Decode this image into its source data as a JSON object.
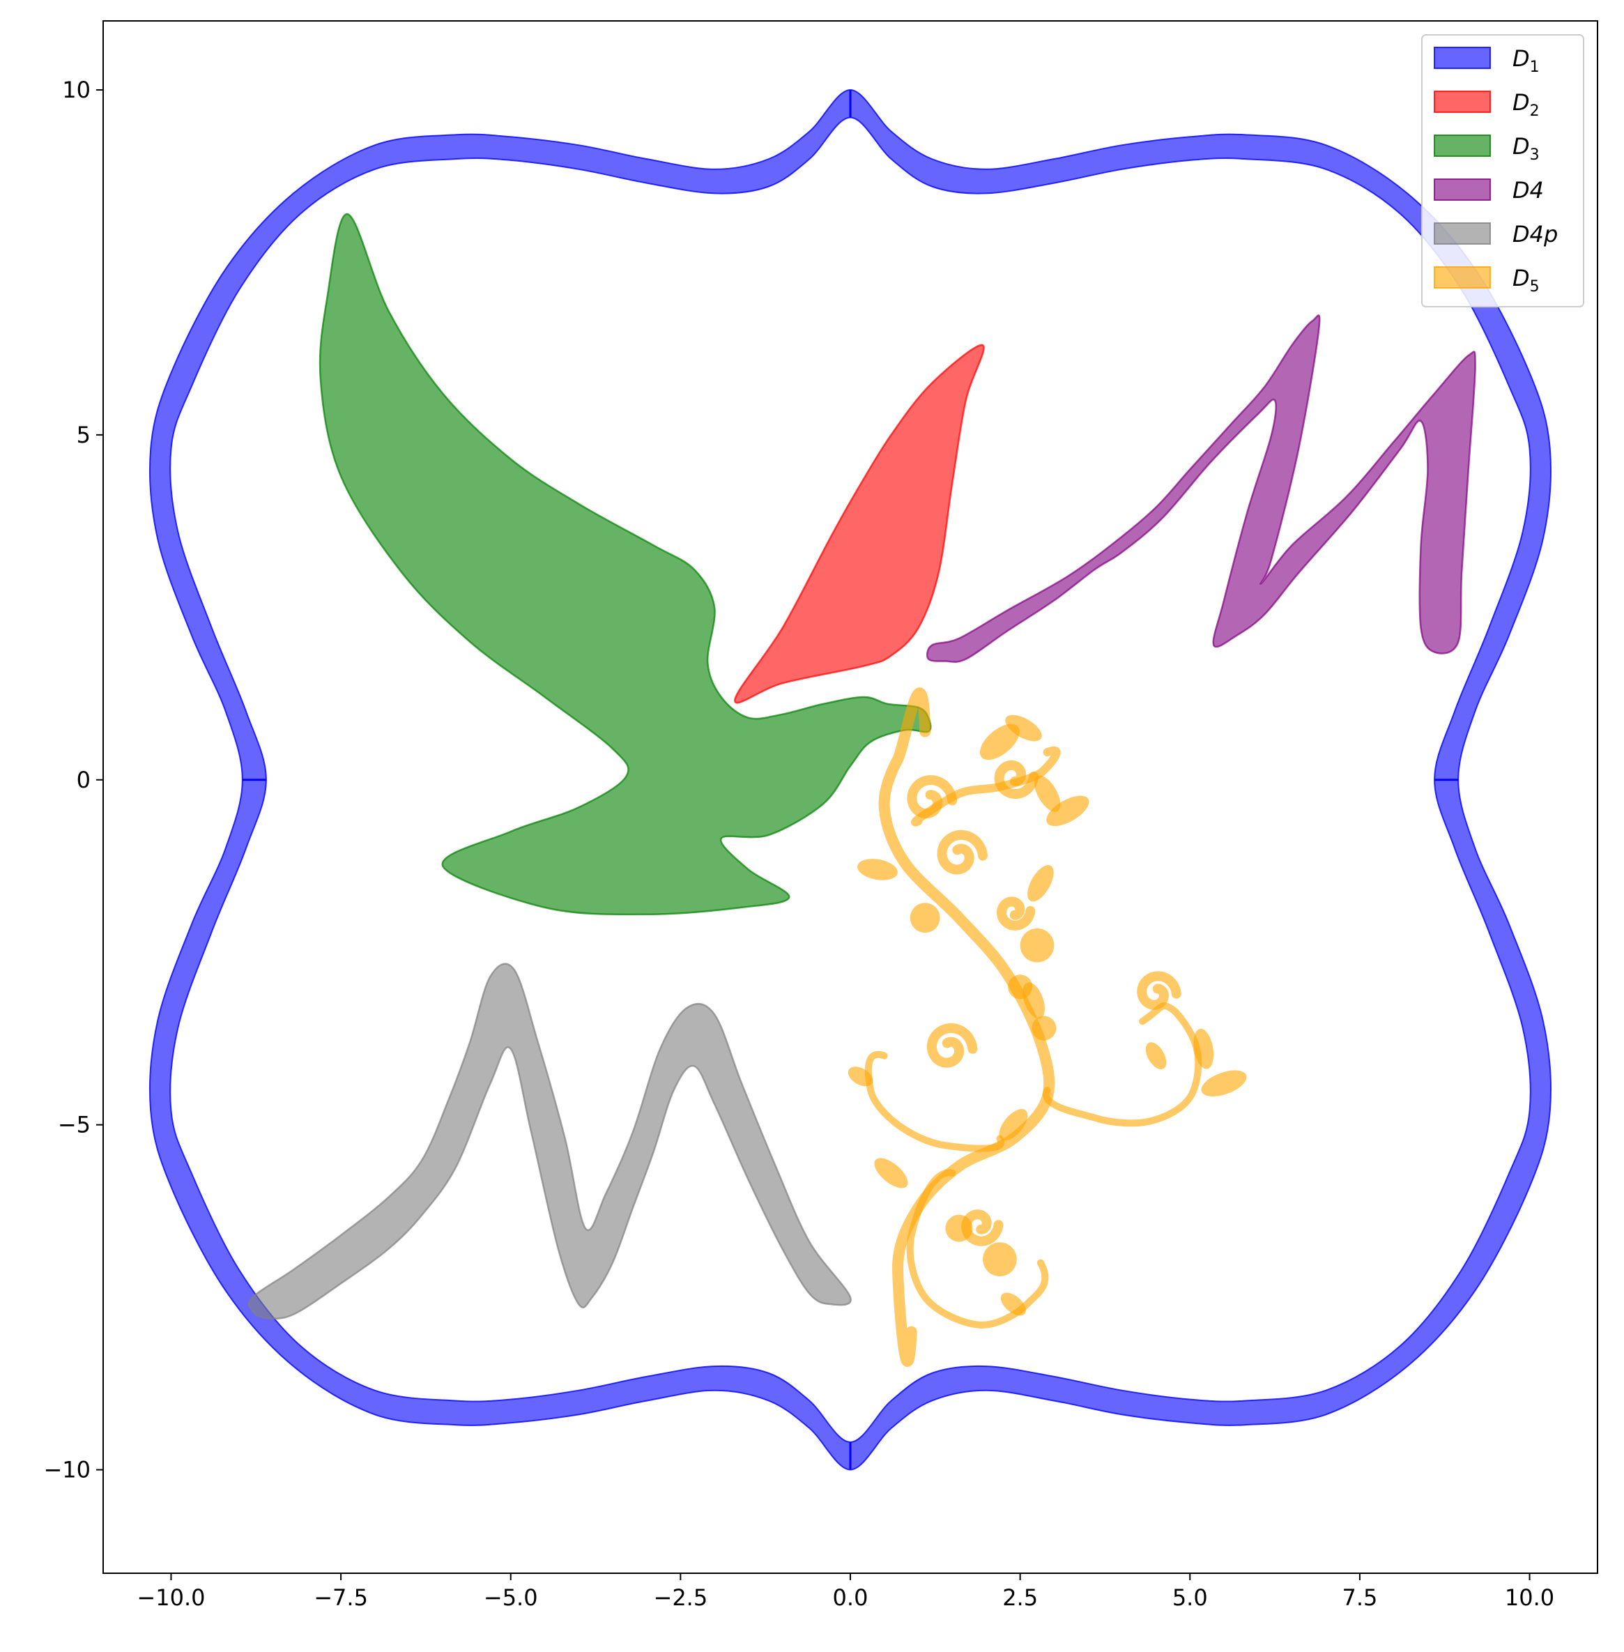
{
  "chart_data": {
    "type": "area",
    "title": "",
    "xlabel": "",
    "ylabel": "",
    "xlim": [
      -11.0,
      11.0
    ],
    "ylim": [
      -11.5,
      11.0
    ],
    "x_ticks": [
      -10.0,
      -7.5,
      -5.0,
      -2.5,
      0.0,
      2.5,
      5.0,
      7.5,
      10.0
    ],
    "x_tick_labels": [
      "−10.0",
      "−7.5",
      "−5.0",
      "−2.5",
      "0.0",
      "2.5",
      "5.0",
      "7.5",
      "10.0"
    ],
    "y_ticks": [
      10,
      5,
      0,
      -5,
      -10
    ],
    "y_tick_labels": [
      "10",
      "5",
      "0",
      "−5",
      "−10"
    ],
    "grid": false,
    "legend_position": "top-right",
    "series": [
      {
        "name": "D1",
        "label_main": "D",
        "label_sub": "1",
        "color": "#0000ff",
        "alpha": 0.6,
        "outer": [
          [
            0,
            10
          ],
          [
            0.6,
            9.4
          ],
          [
            1.2,
            9.0
          ],
          [
            2.0,
            8.85
          ],
          [
            3.0,
            9.0
          ],
          [
            4.0,
            9.2
          ],
          [
            5.0,
            9.32
          ],
          [
            5.8,
            9.35
          ],
          [
            7.0,
            9.2
          ],
          [
            8.2,
            8.5
          ],
          [
            9.2,
            7.4
          ],
          [
            10.0,
            5.9
          ],
          [
            10.3,
            4.8
          ],
          [
            10.2,
            3.5
          ],
          [
            9.7,
            2.1
          ],
          [
            9.2,
            1.0
          ],
          [
            8.95,
            0
          ],
          [
            9.2,
            -1.0
          ],
          [
            9.7,
            -2.1
          ],
          [
            10.2,
            -3.5
          ],
          [
            10.3,
            -4.8
          ],
          [
            10.0,
            -5.9
          ],
          [
            9.2,
            -7.4
          ],
          [
            8.2,
            -8.5
          ],
          [
            7.0,
            -9.2
          ],
          [
            5.8,
            -9.35
          ],
          [
            5.0,
            -9.32
          ],
          [
            4.0,
            -9.2
          ],
          [
            3.0,
            -9.0
          ],
          [
            2.0,
            -8.85
          ],
          [
            1.2,
            -9.0
          ],
          [
            0.6,
            -9.4
          ],
          [
            0,
            -10
          ],
          [
            -0.6,
            -9.4
          ],
          [
            -1.2,
            -9.0
          ],
          [
            -2.0,
            -8.85
          ],
          [
            -3.0,
            -9.0
          ],
          [
            -4.0,
            -9.2
          ],
          [
            -5.0,
            -9.32
          ],
          [
            -5.8,
            -9.35
          ],
          [
            -7.0,
            -9.2
          ],
          [
            -8.2,
            -8.5
          ],
          [
            -9.2,
            -7.4
          ],
          [
            -10.0,
            -5.9
          ],
          [
            -10.3,
            -4.8
          ],
          [
            -10.2,
            -3.5
          ],
          [
            -9.7,
            -2.1
          ],
          [
            -9.2,
            -1.0
          ],
          [
            -8.95,
            0
          ],
          [
            -9.2,
            1.0
          ],
          [
            -9.7,
            2.1
          ],
          [
            -10.2,
            3.5
          ],
          [
            -10.3,
            4.8
          ],
          [
            -10.0,
            5.9
          ],
          [
            -9.2,
            7.4
          ],
          [
            -8.2,
            8.5
          ],
          [
            -7.0,
            9.2
          ],
          [
            -5.8,
            9.35
          ],
          [
            -5.0,
            9.32
          ],
          [
            -4.0,
            9.2
          ],
          [
            -3.0,
            9.0
          ],
          [
            -2.0,
            8.85
          ],
          [
            -1.2,
            9.0
          ],
          [
            -0.6,
            9.4
          ]
        ],
        "inner": [
          [
            0,
            9.6
          ],
          [
            0.6,
            9.0
          ],
          [
            1.2,
            8.6
          ],
          [
            2.0,
            8.5
          ],
          [
            3.0,
            8.65
          ],
          [
            4.0,
            8.85
          ],
          [
            5.0,
            8.98
          ],
          [
            5.8,
            9.0
          ],
          [
            7.0,
            8.85
          ],
          [
            8.1,
            8.2
          ],
          [
            9.0,
            7.1
          ],
          [
            9.7,
            5.7
          ],
          [
            10.0,
            4.8
          ],
          [
            9.9,
            3.6
          ],
          [
            9.4,
            2.2
          ],
          [
            8.9,
            1.0
          ],
          [
            8.6,
            0
          ],
          [
            8.9,
            -1.0
          ],
          [
            9.4,
            -2.2
          ],
          [
            9.9,
            -3.6
          ],
          [
            10.0,
            -4.8
          ],
          [
            9.7,
            -5.7
          ],
          [
            9.0,
            -7.1
          ],
          [
            8.1,
            -8.2
          ],
          [
            7.0,
            -8.85
          ],
          [
            5.8,
            -9.0
          ],
          [
            5.0,
            -8.98
          ],
          [
            4.0,
            -8.85
          ],
          [
            3.0,
            -8.65
          ],
          [
            2.0,
            -8.5
          ],
          [
            1.2,
            -8.6
          ],
          [
            0.6,
            -9.0
          ],
          [
            0,
            -9.6
          ],
          [
            -0.6,
            -9.0
          ],
          [
            -1.2,
            -8.6
          ],
          [
            -2.0,
            -8.5
          ],
          [
            -3.0,
            -8.65
          ],
          [
            -4.0,
            -8.85
          ],
          [
            -5.0,
            -8.98
          ],
          [
            -5.8,
            -9.0
          ],
          [
            -7.0,
            -8.85
          ],
          [
            -8.1,
            -8.2
          ],
          [
            -9.0,
            -7.1
          ],
          [
            -9.7,
            -5.7
          ],
          [
            -10.0,
            -4.8
          ],
          [
            -9.9,
            -3.6
          ],
          [
            -9.4,
            -2.2
          ],
          [
            -8.9,
            -1.0
          ],
          [
            -8.6,
            0
          ],
          [
            -8.9,
            1.0
          ],
          [
            -9.4,
            2.2
          ],
          [
            -9.9,
            3.6
          ],
          [
            -10.0,
            4.8
          ],
          [
            -9.7,
            5.7
          ],
          [
            -9.0,
            7.1
          ],
          [
            -8.1,
            8.2
          ],
          [
            -7.0,
            8.85
          ],
          [
            -5.8,
            9.0
          ],
          [
            -5.0,
            8.98
          ],
          [
            -4.0,
            8.85
          ],
          [
            -3.0,
            8.65
          ],
          [
            -2.0,
            8.5
          ],
          [
            -1.2,
            8.6
          ],
          [
            -0.6,
            9.0
          ]
        ]
      },
      {
        "name": "D2",
        "label_main": "D",
        "label_sub": "2",
        "color": "#ff0000",
        "alpha": 0.6,
        "outline": [
          [
            -1.7,
            1.15
          ],
          [
            -1.0,
            2.2
          ],
          [
            -0.3,
            3.5
          ],
          [
            0.1,
            4.2
          ],
          [
            0.6,
            5.0
          ],
          [
            1.2,
            5.75
          ],
          [
            1.95,
            6.3
          ],
          [
            1.7,
            5.5
          ],
          [
            1.5,
            4.3
          ],
          [
            1.3,
            3.0
          ],
          [
            1.0,
            2.2
          ],
          [
            0.6,
            1.8
          ],
          [
            0.2,
            1.65
          ],
          [
            -1.0,
            1.4
          ]
        ]
      },
      {
        "name": "D3",
        "label_main": "D",
        "label_sub": "3",
        "color": "#008000",
        "alpha": 0.6,
        "outline": [
          [
            -7.4,
            8.2
          ],
          [
            -6.8,
            6.8
          ],
          [
            -6.0,
            5.6
          ],
          [
            -5.0,
            4.65
          ],
          [
            -4.0,
            4.0
          ],
          [
            -2.9,
            3.4
          ],
          [
            -2.3,
            3.05
          ],
          [
            -2.0,
            2.5
          ],
          [
            -2.1,
            1.7
          ],
          [
            -1.9,
            1.2
          ],
          [
            -1.5,
            0.9
          ],
          [
            -1.0,
            0.95
          ],
          [
            -0.4,
            1.1
          ],
          [
            0.2,
            1.2
          ],
          [
            0.55,
            1.1
          ],
          [
            1.0,
            1.05
          ],
          [
            1.15,
            0.9
          ],
          [
            1.15,
            0.7
          ],
          [
            0.8,
            0.72
          ],
          [
            0.3,
            0.55
          ],
          [
            0.0,
            0.2
          ],
          [
            -0.4,
            -0.35
          ],
          [
            -1.2,
            -0.8
          ],
          [
            -1.9,
            -0.85
          ],
          [
            -1.5,
            -1.3
          ],
          [
            -0.9,
            -1.7
          ],
          [
            -1.6,
            -1.85
          ],
          [
            -3.0,
            -1.95
          ],
          [
            -4.5,
            -1.85
          ],
          [
            -6.0,
            -1.25
          ],
          [
            -5.0,
            -0.75
          ],
          [
            -4.0,
            -0.4
          ],
          [
            -3.3,
            0.05
          ],
          [
            -3.5,
            0.45
          ],
          [
            -4.5,
            1.2
          ],
          [
            -5.6,
            2.0
          ],
          [
            -6.6,
            3.0
          ],
          [
            -7.5,
            4.4
          ],
          [
            -7.8,
            5.8
          ],
          [
            -7.7,
            7.0
          ]
        ]
      },
      {
        "name": "D4",
        "label_main": "D4",
        "label_sub": "",
        "color": "#800080",
        "alpha": 0.6,
        "outline": [
          [
            1.2,
            1.95
          ],
          [
            1.6,
            2.05
          ],
          [
            2.3,
            2.45
          ],
          [
            3.2,
            2.95
          ],
          [
            3.9,
            3.45
          ],
          [
            4.5,
            3.95
          ],
          [
            5.0,
            4.5
          ],
          [
            5.6,
            5.15
          ],
          [
            6.1,
            5.7
          ],
          [
            6.5,
            6.3
          ],
          [
            6.8,
            6.65
          ],
          [
            6.9,
            6.55
          ],
          [
            6.6,
            4.8
          ],
          [
            6.2,
            3.2
          ],
          [
            6.05,
            2.85
          ],
          [
            6.5,
            3.4
          ],
          [
            7.3,
            4.1
          ],
          [
            8.0,
            4.9
          ],
          [
            8.6,
            5.6
          ],
          [
            9.1,
            6.15
          ],
          [
            9.2,
            6.0
          ],
          [
            9.1,
            4.5
          ],
          [
            9.0,
            3.0
          ],
          [
            8.95,
            2.0
          ],
          [
            8.6,
            1.85
          ],
          [
            8.4,
            2.2
          ],
          [
            8.4,
            3.4
          ],
          [
            8.5,
            4.5
          ],
          [
            8.4,
            5.2
          ],
          [
            8.1,
            4.8
          ],
          [
            7.4,
            3.9
          ],
          [
            6.6,
            3.0
          ],
          [
            6.1,
            2.4
          ],
          [
            5.7,
            2.1
          ],
          [
            5.35,
            1.95
          ],
          [
            5.5,
            2.6
          ],
          [
            5.85,
            3.9
          ],
          [
            6.2,
            5.0
          ],
          [
            6.25,
            5.5
          ],
          [
            6.0,
            5.3
          ],
          [
            5.3,
            4.6
          ],
          [
            4.6,
            3.8
          ],
          [
            4.0,
            3.3
          ],
          [
            3.6,
            3.05
          ],
          [
            3.0,
            2.6
          ],
          [
            2.3,
            2.15
          ],
          [
            1.7,
            1.75
          ],
          [
            1.4,
            1.72
          ],
          [
            1.15,
            1.75
          ]
        ]
      },
      {
        "name": "D4p",
        "label_main": "D4p",
        "label_sub": "",
        "color": "#808080",
        "alpha": 0.6,
        "outline": [
          [
            -8.8,
            -7.5
          ],
          [
            -8.2,
            -7.1
          ],
          [
            -7.5,
            -6.6
          ],
          [
            -6.8,
            -6.05
          ],
          [
            -6.3,
            -5.5
          ],
          [
            -5.9,
            -4.6
          ],
          [
            -5.6,
            -3.8
          ],
          [
            -5.3,
            -2.85
          ],
          [
            -4.95,
            -2.75
          ],
          [
            -4.6,
            -3.8
          ],
          [
            -4.2,
            -5.2
          ],
          [
            -3.9,
            -6.5
          ],
          [
            -3.6,
            -6.0
          ],
          [
            -3.2,
            -5.1
          ],
          [
            -2.8,
            -3.9
          ],
          [
            -2.4,
            -3.3
          ],
          [
            -2.0,
            -3.4
          ],
          [
            -1.6,
            -4.4
          ],
          [
            -1.1,
            -5.6
          ],
          [
            -0.6,
            -6.7
          ],
          [
            0.0,
            -7.5
          ],
          [
            -0.3,
            -7.6
          ],
          [
            -0.6,
            -7.45
          ],
          [
            -1.0,
            -6.8
          ],
          [
            -1.5,
            -5.8
          ],
          [
            -2.0,
            -4.7
          ],
          [
            -2.3,
            -4.15
          ],
          [
            -2.6,
            -4.5
          ],
          [
            -2.9,
            -5.4
          ],
          [
            -3.2,
            -6.2
          ],
          [
            -3.5,
            -7.0
          ],
          [
            -3.8,
            -7.5
          ],
          [
            -4.0,
            -7.6
          ],
          [
            -4.3,
            -6.8
          ],
          [
            -4.7,
            -5.1
          ],
          [
            -5.0,
            -3.9
          ],
          [
            -5.3,
            -4.4
          ],
          [
            -5.8,
            -5.6
          ],
          [
            -6.3,
            -6.3
          ],
          [
            -6.8,
            -6.8
          ],
          [
            -7.5,
            -7.3
          ],
          [
            -8.2,
            -7.75
          ],
          [
            -8.6,
            -7.8
          ],
          [
            -8.8,
            -7.7
          ]
        ]
      },
      {
        "name": "D5",
        "label_main": "D",
        "label_sub": "5",
        "color": "#ffa500",
        "alpha": 0.6,
        "ornament": true
      }
    ]
  }
}
